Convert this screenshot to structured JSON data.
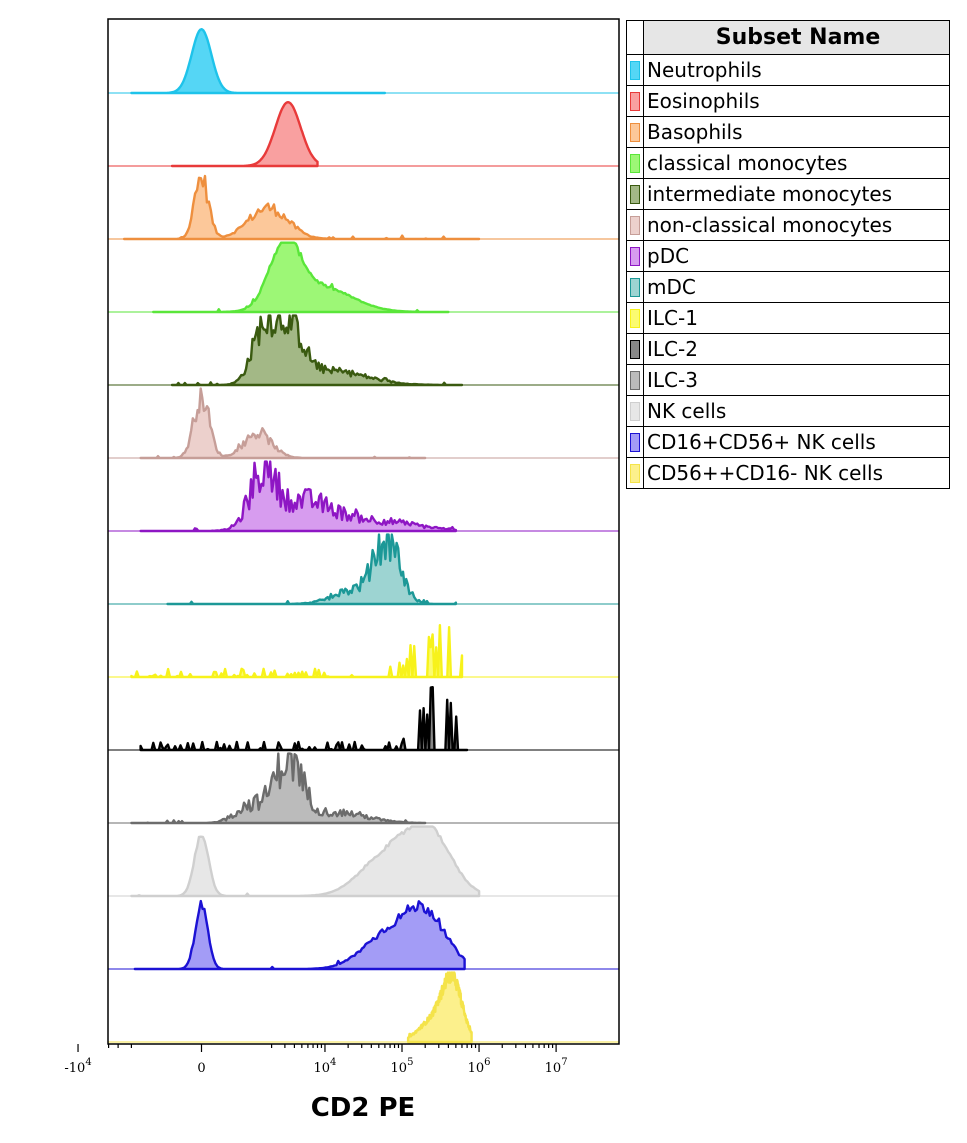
{
  "chart_data": {
    "type": "histogram",
    "xlabel": "CD2 PE",
    "x_scale": "biexponential",
    "xlim": [
      -20000,
      10000000
    ],
    "x_ticks": [
      {
        "value": -10000,
        "base": "-10",
        "exp": "4"
      },
      {
        "value": 0,
        "base": "0",
        "exp": ""
      },
      {
        "value": 10000,
        "base": "10",
        "exp": "4"
      },
      {
        "value": 100000,
        "base": "10",
        "exp": "5"
      },
      {
        "value": 1000000,
        "base": "10",
        "exp": "6"
      },
      {
        "value": 10000000,
        "base": "10",
        "exp": "7"
      }
    ],
    "legend_title": "Subset Name",
    "series": [
      {
        "name": "Neutrophils",
        "color": "#55d6f5",
        "line": "#1ec3ea",
        "peaks": [
          [
            0,
            0.92,
            0.07
          ]
        ],
        "support": [
          -2000,
          60000
        ],
        "noise": 0.0
      },
      {
        "name": "Eosinophils",
        "color": "#f9a0a0",
        "line": "#e83a3a",
        "peaks": [
          [
            3300,
            0.92,
            0.09
          ]
        ],
        "support": [
          -500,
          8000
        ],
        "noise": 0.0
      },
      {
        "name": "Basophils",
        "color": "#fcc89a",
        "line": "#ee8f3e",
        "peaks": [
          [
            0,
            0.88,
            0.05
          ],
          [
            1800,
            0.45,
            0.14
          ]
        ],
        "support": [
          -2500,
          1000000
        ],
        "noise": 0.25
      },
      {
        "name": "classical monocytes",
        "color": "#9df776",
        "line": "#5ae63a",
        "peaks": [
          [
            3000,
            0.9,
            0.11
          ],
          [
            9000,
            0.35,
            0.22
          ]
        ],
        "support": [
          -1000,
          400000
        ],
        "noise": 0.06
      },
      {
        "name": "intermediate monocytes",
        "color": "#a3b886",
        "line": "#3a5a10",
        "peaks": [
          [
            1500,
            0.7,
            0.08
          ],
          [
            3300,
            0.82,
            0.1
          ],
          [
            12000,
            0.2,
            0.25
          ]
        ],
        "support": [
          -500,
          600000
        ],
        "noise": 0.35
      },
      {
        "name": "non-classical monocytes",
        "color": "#ecd0cc",
        "line": "#c69e98",
        "peaks": [
          [
            0,
            0.9,
            0.055
          ],
          [
            1300,
            0.35,
            0.1
          ]
        ],
        "support": [
          -1500,
          200000
        ],
        "noise": 0.3
      },
      {
        "name": "pDC",
        "color": "#d79cef",
        "line": "#8e16c4",
        "peaks": [
          [
            1500,
            0.75,
            0.09
          ],
          [
            5000,
            0.4,
            0.2
          ],
          [
            40000,
            0.15,
            0.3
          ]
        ],
        "support": [
          -1500,
          500000
        ],
        "noise": 0.5
      },
      {
        "name": "mDC",
        "color": "#9dd4d2",
        "line": "#1c9897",
        "peaks": [
          [
            65000,
            0.88,
            0.09
          ],
          [
            25000,
            0.2,
            0.15
          ]
        ],
        "support": [
          -600,
          500000
        ],
        "noise": 0.45
      },
      {
        "name": "ILC-1",
        "color": "#fbfb70",
        "line": "#f7f21b",
        "peaks": [
          [
            250000,
            0.7,
            0.12
          ]
        ],
        "support": [
          -2000,
          600000
        ],
        "noise": 1.0
      },
      {
        "name": "ILC-2",
        "color": "#888888",
        "line": "#000000",
        "peaks": [
          [
            300000,
            0.6,
            0.12
          ]
        ],
        "support": [
          -1500,
          700000
        ],
        "noise": 1.0
      },
      {
        "name": "ILC-3",
        "color": "#bbbbbb",
        "line": "#6c6c6c",
        "peaks": [
          [
            3300,
            0.92,
            0.1
          ],
          [
            1000,
            0.25,
            0.1
          ],
          [
            15000,
            0.15,
            0.2
          ]
        ],
        "support": [
          -2000,
          200000
        ],
        "noise": 0.5
      },
      {
        "name": "NK cells",
        "color": "#e7e7e7",
        "line": "#cfcfcf",
        "peaks": [
          [
            0,
            0.88,
            0.05
          ],
          [
            220000,
            0.92,
            0.16
          ],
          [
            60000,
            0.55,
            0.18
          ]
        ],
        "support": [
          -2000,
          1000000
        ],
        "noise": 0.05
      },
      {
        "name": "CD16+CD56+ NK cells",
        "color": "#a39cf6",
        "line": "#1c12d4",
        "peaks": [
          [
            0,
            0.92,
            0.045
          ],
          [
            200000,
            0.78,
            0.15
          ],
          [
            60000,
            0.45,
            0.17
          ]
        ],
        "support": [
          -1800,
          650000
        ],
        "noise": 0.12
      },
      {
        "name": "CD56++CD16- NK cells",
        "color": "#fcf08c",
        "line": "#f4e34a",
        "peaks": [
          [
            450000,
            0.85,
            0.07
          ],
          [
            250000,
            0.3,
            0.1
          ]
        ],
        "support": [
          120000,
          800000
        ],
        "noise": 0.15
      }
    ]
  }
}
